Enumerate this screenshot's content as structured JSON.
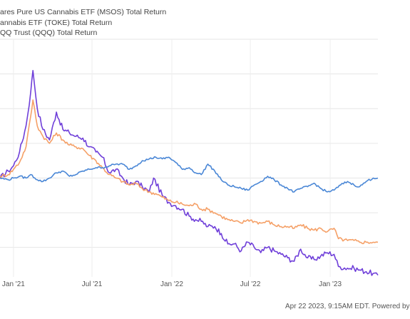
{
  "legend": [
    {
      "label": "ares Pure US Cannabis ETF (MSOS) Total Return",
      "color": "#6f3fd9"
    },
    {
      "label": "annabis ETF (TOKE) Total Return",
      "color": "#f5a067"
    },
    {
      "label": "QQ Trust (QQQ) Total Return",
      "color": "#4a87d6"
    }
  ],
  "footer": "Apr 22 2023, 9:15AM EDT. Powered by",
  "chart_data": {
    "type": "line",
    "x_ticks": [
      "Jan '21",
      "Jul '21",
      "Jan '22",
      "Jul '22",
      "Jan '23"
    ],
    "x_range": [
      "2020-12-01",
      "2023-04-21"
    ],
    "grid": true,
    "legend_position": "top-left",
    "series": [
      {
        "name": "ares Pure US Cannabis ETF (MSOS) Total Return",
        "color": "#6f3fd9",
        "points": [
          [
            "2020-12-01",
            0.0
          ],
          [
            "2020-12-20",
            4.0
          ],
          [
            "2021-01-01",
            7.0
          ],
          [
            "2021-01-15",
            15.0
          ],
          [
            "2021-01-30",
            30.0
          ],
          [
            "2021-02-10",
            50.0
          ],
          [
            "2021-02-15",
            62.0
          ],
          [
            "2021-02-25",
            40.0
          ],
          [
            "2021-03-10",
            28.0
          ],
          [
            "2021-03-25",
            22.0
          ],
          [
            "2021-04-10",
            38.0
          ],
          [
            "2021-04-25",
            28.0
          ],
          [
            "2021-05-10",
            26.0
          ],
          [
            "2021-05-25",
            24.0
          ],
          [
            "2021-06-10",
            23.0
          ],
          [
            "2021-06-25",
            18.0
          ],
          [
            "2021-07-10",
            15.0
          ],
          [
            "2021-07-25",
            12.0
          ],
          [
            "2021-08-10",
            3.0
          ],
          [
            "2021-08-25",
            5.0
          ],
          [
            "2021-09-10",
            0.0
          ],
          [
            "2021-09-25",
            -4.0
          ],
          [
            "2021-10-10",
            -2.0
          ],
          [
            "2021-10-25",
            -5.0
          ],
          [
            "2021-11-10",
            -8.0
          ],
          [
            "2021-11-20",
            0.0
          ],
          [
            "2021-12-10",
            -10.0
          ],
          [
            "2021-12-25",
            -14.0
          ],
          [
            "2022-01-10",
            -16.0
          ],
          [
            "2022-01-25",
            -18.0
          ],
          [
            "2022-02-10",
            -22.0
          ],
          [
            "2022-02-25",
            -24.0
          ],
          [
            "2022-03-10",
            -25.0
          ],
          [
            "2022-03-25",
            -28.0
          ],
          [
            "2022-04-10",
            -28.0
          ],
          [
            "2022-04-25",
            -32.0
          ],
          [
            "2022-05-10",
            -38.0
          ],
          [
            "2022-05-25",
            -38.0
          ],
          [
            "2022-06-10",
            -42.0
          ],
          [
            "2022-06-25",
            -37.0
          ],
          [
            "2022-07-10",
            -40.0
          ],
          [
            "2022-07-25",
            -43.0
          ],
          [
            "2022-08-10",
            -40.0
          ],
          [
            "2022-08-25",
            -42.0
          ],
          [
            "2022-09-10",
            -44.0
          ],
          [
            "2022-09-25",
            -46.0
          ],
          [
            "2022-10-10",
            -48.0
          ],
          [
            "2022-10-25",
            -41.0
          ],
          [
            "2022-11-10",
            -46.0
          ],
          [
            "2022-11-25",
            -47.0
          ],
          [
            "2022-12-10",
            -45.0
          ],
          [
            "2022-12-25",
            -43.0
          ],
          [
            "2023-01-10",
            -44.0
          ],
          [
            "2023-01-20",
            -51.0
          ],
          [
            "2023-02-10",
            -52.0
          ],
          [
            "2023-02-25",
            -52.0
          ],
          [
            "2023-03-10",
            -53.0
          ],
          [
            "2023-03-25",
            -54.0
          ],
          [
            "2023-04-10",
            -55.0
          ],
          [
            "2023-04-21",
            -56.0
          ]
        ]
      },
      {
        "name": "annabis ETF (TOKE) Total Return",
        "color": "#f5a067",
        "points": [
          [
            "2020-12-01",
            1.0
          ],
          [
            "2020-12-20",
            2.0
          ],
          [
            "2021-01-01",
            5.0
          ],
          [
            "2021-01-15",
            9.0
          ],
          [
            "2021-01-30",
            18.0
          ],
          [
            "2021-02-10",
            36.0
          ],
          [
            "2021-02-15",
            45.0
          ],
          [
            "2021-02-25",
            30.0
          ],
          [
            "2021-03-10",
            24.0
          ],
          [
            "2021-03-25",
            20.0
          ],
          [
            "2021-04-10",
            26.0
          ],
          [
            "2021-04-25",
            22.0
          ],
          [
            "2021-05-10",
            19.0
          ],
          [
            "2021-05-25",
            18.0
          ],
          [
            "2021-06-10",
            17.0
          ],
          [
            "2021-06-25",
            13.0
          ],
          [
            "2021-07-10",
            10.0
          ],
          [
            "2021-07-25",
            6.0
          ],
          [
            "2021-08-10",
            2.0
          ],
          [
            "2021-08-25",
            0.0
          ],
          [
            "2021-09-10",
            -2.0
          ],
          [
            "2021-09-25",
            -4.0
          ],
          [
            "2021-10-10",
            -3.0
          ],
          [
            "2021-10-25",
            -6.0
          ],
          [
            "2021-11-10",
            -8.0
          ],
          [
            "2021-11-25",
            -9.0
          ],
          [
            "2021-12-10",
            -11.0
          ],
          [
            "2021-12-25",
            -13.0
          ],
          [
            "2022-01-10",
            -14.0
          ],
          [
            "2022-01-25",
            -15.0
          ],
          [
            "2022-02-10",
            -16.0
          ],
          [
            "2022-02-25",
            -15.0
          ],
          [
            "2022-03-10",
            -18.0
          ],
          [
            "2022-03-25",
            -18.0
          ],
          [
            "2022-04-10",
            -20.0
          ],
          [
            "2022-04-25",
            -22.0
          ],
          [
            "2022-05-10",
            -24.0
          ],
          [
            "2022-05-25",
            -25.0
          ],
          [
            "2022-06-10",
            -26.0
          ],
          [
            "2022-06-25",
            -24.0
          ],
          [
            "2022-07-10",
            -25.0
          ],
          [
            "2022-07-25",
            -26.0
          ],
          [
            "2022-08-10",
            -25.0
          ],
          [
            "2022-08-25",
            -27.0
          ],
          [
            "2022-09-10",
            -28.0
          ],
          [
            "2022-09-25",
            -28.0
          ],
          [
            "2022-10-10",
            -29.0
          ],
          [
            "2022-10-25",
            -27.0
          ],
          [
            "2022-11-10",
            -29.0
          ],
          [
            "2022-11-25",
            -30.0
          ],
          [
            "2022-12-10",
            -29.0
          ],
          [
            "2022-12-25",
            -31.0
          ],
          [
            "2023-01-10",
            -29.0
          ],
          [
            "2023-01-20",
            -35.0
          ],
          [
            "2023-02-10",
            -36.0
          ],
          [
            "2023-02-25",
            -36.0
          ],
          [
            "2023-03-10",
            -37.0
          ],
          [
            "2023-03-25",
            -37.0
          ],
          [
            "2023-04-10",
            -37.0
          ],
          [
            "2023-04-21",
            -37.0
          ]
        ]
      },
      {
        "name": "QQ Trust (QQQ) Total Return",
        "color": "#4a87d6",
        "points": [
          [
            "2020-12-01",
            0.0
          ],
          [
            "2020-12-20",
            -1.0
          ],
          [
            "2021-01-01",
            0.0
          ],
          [
            "2021-01-15",
            1.0
          ],
          [
            "2021-01-30",
            0.0
          ],
          [
            "2021-02-10",
            2.0
          ],
          [
            "2021-02-25",
            -1.0
          ],
          [
            "2021-03-10",
            -2.0
          ],
          [
            "2021-03-25",
            0.0
          ],
          [
            "2021-04-10",
            3.0
          ],
          [
            "2021-04-25",
            4.0
          ],
          [
            "2021-05-10",
            1.0
          ],
          [
            "2021-05-25",
            2.0
          ],
          [
            "2021-06-10",
            4.0
          ],
          [
            "2021-06-25",
            5.0
          ],
          [
            "2021-07-10",
            6.0
          ],
          [
            "2021-07-25",
            6.0
          ],
          [
            "2021-08-10",
            7.0
          ],
          [
            "2021-08-25",
            8.0
          ],
          [
            "2021-09-10",
            8.0
          ],
          [
            "2021-09-25",
            5.0
          ],
          [
            "2021-10-10",
            7.0
          ],
          [
            "2021-10-25",
            10.0
          ],
          [
            "2021-11-10",
            11.0
          ],
          [
            "2021-11-25",
            12.0
          ],
          [
            "2021-12-10",
            11.0
          ],
          [
            "2021-12-25",
            12.0
          ],
          [
            "2022-01-10",
            9.0
          ],
          [
            "2022-01-25",
            5.0
          ],
          [
            "2022-02-10",
            6.0
          ],
          [
            "2022-02-25",
            3.0
          ],
          [
            "2022-03-10",
            2.0
          ],
          [
            "2022-03-25",
            8.0
          ],
          [
            "2022-04-10",
            4.0
          ],
          [
            "2022-04-25",
            -1.0
          ],
          [
            "2022-05-10",
            -4.0
          ],
          [
            "2022-05-25",
            -5.0
          ],
          [
            "2022-06-10",
            -6.0
          ],
          [
            "2022-06-25",
            -7.0
          ],
          [
            "2022-07-10",
            -4.0
          ],
          [
            "2022-07-25",
            -2.0
          ],
          [
            "2022-08-10",
            1.0
          ],
          [
            "2022-08-25",
            -1.0
          ],
          [
            "2022-09-10",
            -4.0
          ],
          [
            "2022-09-25",
            -6.0
          ],
          [
            "2022-10-10",
            -8.0
          ],
          [
            "2022-10-25",
            -6.0
          ],
          [
            "2022-11-10",
            -5.0
          ],
          [
            "2022-11-25",
            -3.0
          ],
          [
            "2022-12-10",
            -6.0
          ],
          [
            "2022-12-25",
            -8.0
          ],
          [
            "2023-01-10",
            -7.0
          ],
          [
            "2023-01-25",
            -4.0
          ],
          [
            "2023-02-10",
            -2.0
          ],
          [
            "2023-02-25",
            -4.0
          ],
          [
            "2023-03-10",
            -5.0
          ],
          [
            "2023-03-25",
            -2.0
          ],
          [
            "2023-04-10",
            0.0
          ],
          [
            "2023-04-21",
            0.0
          ]
        ]
      }
    ]
  }
}
